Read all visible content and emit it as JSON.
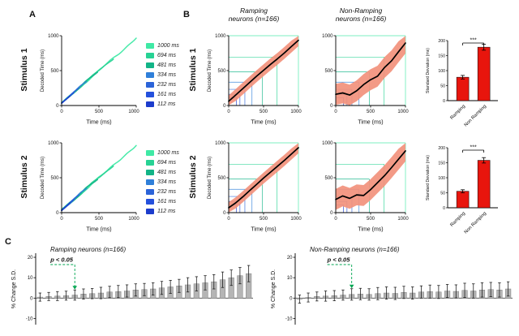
{
  "figure": {
    "panel_labels": {
      "a": "A",
      "b": "B",
      "c": "C"
    },
    "row_labels": {
      "stim1": "Stimulus 1",
      "stim2": "Stimulus 2"
    },
    "b_col_titles": {
      "ramping_line1": "Ramping",
      "ramping_line2": "neurons (n=166)",
      "nonramping_line1": "Non-Ramping",
      "nonramping_line2": "neurons (n=166)"
    }
  },
  "legend": {
    "items": [
      {
        "label": "1000 ms",
        "color": "#3fe9a5"
      },
      {
        "label": "694 ms",
        "color": "#27d294"
      },
      {
        "label": "481 ms",
        "color": "#12b487"
      },
      {
        "label": "334 ms",
        "color": "#2f7fd9"
      },
      {
        "label": "232 ms",
        "color": "#2b63d8"
      },
      {
        "label": "161 ms",
        "color": "#2450dc"
      },
      {
        "label": "112 ms",
        "color": "#1c3ccc"
      }
    ]
  },
  "chart_data": [
    {
      "id": "a1",
      "type": "lines",
      "title": "",
      "xlabel": "Time (ms)",
      "ylabel": "Decoded Time (ms)",
      "xlim": [
        0,
        1000
      ],
      "ylim": [
        0,
        1000
      ],
      "xticks": [
        0,
        500,
        1000
      ],
      "yticks": [
        0,
        500,
        1000
      ],
      "seed": 1,
      "series": [
        {
          "name": "1000 ms",
          "color": "#3fe9a5",
          "duration": 1000
        },
        {
          "name": "694 ms",
          "color": "#27d294",
          "duration": 694
        },
        {
          "name": "481 ms",
          "color": "#12b487",
          "duration": 481
        },
        {
          "name": "334 ms",
          "color": "#2f7fd9",
          "duration": 334
        },
        {
          "name": "232 ms",
          "color": "#2b63d8",
          "duration": 232
        },
        {
          "name": "161 ms",
          "color": "#2450dc",
          "duration": 161
        },
        {
          "name": "112 ms",
          "color": "#1c3ccc",
          "duration": 112
        }
      ]
    },
    {
      "id": "a2",
      "type": "lines",
      "title": "",
      "xlabel": "Time (ms)",
      "ylabel": "Decoded Time (ms)",
      "xlim": [
        0,
        1000
      ],
      "ylim": [
        0,
        1000
      ],
      "xticks": [
        0,
        500,
        1000
      ],
      "yticks": [
        0,
        500,
        1000
      ],
      "seed": 2,
      "series": [
        {
          "name": "1000 ms",
          "color": "#3fe9a5",
          "duration": 1000
        },
        {
          "name": "694 ms",
          "color": "#27d294",
          "duration": 694
        },
        {
          "name": "481 ms",
          "color": "#12b487",
          "duration": 481
        },
        {
          "name": "334 ms",
          "color": "#2f7fd9",
          "duration": 334
        },
        {
          "name": "232 ms",
          "color": "#2b63d8",
          "duration": 232
        },
        {
          "name": "161 ms",
          "color": "#2450dc",
          "duration": 161
        },
        {
          "name": "112 ms",
          "color": "#1c3ccc",
          "duration": 112
        }
      ]
    },
    {
      "id": "b1",
      "type": "ramp",
      "title": "Ramping neurons (n=166) - Stimulus 1",
      "xlabel": "Time (ms)",
      "ylabel": "Decoded Time (ms)",
      "xlim": [
        0,
        1000
      ],
      "ylim": [
        0,
        1000
      ],
      "xticks": [
        0,
        500,
        1000
      ],
      "yticks": [
        0,
        500,
        1000
      ],
      "grid_durations": [
        112,
        161,
        232,
        334,
        481,
        694,
        1000
      ],
      "mean": [
        60,
        150,
        240,
        330,
        420,
        505,
        590,
        670,
        755,
        845,
        935
      ],
      "band": 85,
      "band_color": "#f2917c",
      "line_color": "#000000"
    },
    {
      "id": "b2",
      "type": "ramp",
      "title": "Non-Ramping neurons (n=166) - Stimulus 1",
      "xlabel": "Time (ms)",
      "ylabel": "",
      "xlim": [
        0,
        1000
      ],
      "ylim": [
        0,
        1000
      ],
      "xticks": [
        0,
        500,
        1000
      ],
      "yticks": [
        0,
        500,
        1000
      ],
      "grid_durations": [
        112,
        161,
        232,
        334,
        481,
        694,
        1000
      ],
      "mean": [
        160,
        180,
        150,
        210,
        300,
        370,
        420,
        545,
        640,
        770,
        895
      ],
      "band": 150,
      "band_color": "#f2917c",
      "line_color": "#000000"
    },
    {
      "id": "b3",
      "type": "ramp",
      "title": "Ramping neurons (n=166) - Stimulus 2",
      "xlabel": "Time (ms)",
      "ylabel": "Decoded Time (ms)",
      "xlim": [
        0,
        1000
      ],
      "ylim": [
        0,
        1000
      ],
      "xticks": [
        0,
        500,
        1000
      ],
      "yticks": [
        0,
        500,
        1000
      ],
      "grid_durations": [
        112,
        161,
        232,
        334,
        481,
        694,
        1000
      ],
      "mean": [
        70,
        140,
        225,
        315,
        405,
        495,
        580,
        665,
        750,
        840,
        930
      ],
      "band": 80,
      "band_color": "#f2917c",
      "line_color": "#000000"
    },
    {
      "id": "b4",
      "type": "ramp",
      "title": "Non-Ramping neurons (n=166) - Stimulus 2",
      "xlabel": "Time (ms)",
      "ylabel": "",
      "xlim": [
        0,
        1000
      ],
      "ylim": [
        0,
        1000
      ],
      "xticks": [
        0,
        500,
        1000
      ],
      "yticks": [
        0,
        500,
        1000
      ],
      "grid_durations": [
        112,
        161,
        232,
        334,
        481,
        694,
        1000
      ],
      "mean": [
        190,
        240,
        205,
        255,
        245,
        330,
        430,
        530,
        645,
        765,
        885
      ],
      "band": 150,
      "band_color": "#f2917c",
      "line_color": "#000000"
    },
    {
      "id": "sd1",
      "type": "bar",
      "title": "Standard Deviation - Stimulus 1",
      "ylabel": "Standard Deviation (ms)",
      "categories": [
        "Ramping",
        "Non Ramping"
      ],
      "values": [
        78,
        178
      ],
      "errors": [
        6,
        10
      ],
      "ylim": [
        0,
        200
      ],
      "yticks": [
        0,
        50,
        100,
        150,
        200
      ],
      "bar_color": "#e8150d",
      "sig": "***"
    },
    {
      "id": "sd2",
      "type": "bar",
      "title": "Standard Deviation - Stimulus 2",
      "ylabel": "Standard Deviation (ms)",
      "categories": [
        "Ramping",
        "Non Ramping"
      ],
      "values": [
        55,
        158
      ],
      "errors": [
        5,
        9
      ],
      "ylim": [
        0,
        200
      ],
      "yticks": [
        0,
        50,
        100,
        150,
        200
      ],
      "bar_color": "#e8150d",
      "sig": "***"
    },
    {
      "id": "c1",
      "type": "barseries",
      "title": "Ramping neurons (n=166)",
      "ylabel": "% Change S.D.",
      "ylim": [
        -13,
        22
      ],
      "yticks": [
        -10,
        0,
        10,
        20
      ],
      "bar_color": "#b5b5b5",
      "values": [
        0.5,
        0.8,
        1.0,
        1.2,
        1.5,
        2.0,
        2.2,
        2.5,
        3.0,
        3.2,
        3.5,
        4.0,
        4.2,
        4.5,
        5.0,
        5.5,
        6.0,
        6.5,
        7.0,
        7.5,
        8.0,
        9.0,
        10.0,
        11.0,
        12.0
      ],
      "errors": [
        2.0,
        2.0,
        2.2,
        2.2,
        2.5,
        2.5,
        2.5,
        2.8,
        2.8,
        3.0,
        3.0,
        3.0,
        3.0,
        3.0,
        3.2,
        3.2,
        3.2,
        3.5,
        3.5,
        3.5,
        3.5,
        3.8,
        3.8,
        4.0,
        4.0
      ],
      "annotation": {
        "text": "p < 0.05",
        "color": "#00a651",
        "index": 4
      }
    },
    {
      "id": "c2",
      "type": "barseries",
      "title": "Non-Ramping neurons (n=166)",
      "ylabel": "% Change S.D.",
      "ylim": [
        -13,
        22
      ],
      "yticks": [
        -10,
        0,
        10,
        20
      ],
      "bar_color": "#b5b5b5",
      "values": [
        -0.5,
        0.3,
        0.8,
        1.0,
        1.2,
        1.5,
        1.8,
        2.0,
        1.8,
        2.2,
        2.5,
        2.3,
        2.8,
        2.5,
        3.0,
        3.2,
        3.0,
        3.5,
        3.3,
        3.8,
        3.5,
        4.0,
        4.2,
        4.0,
        4.5
      ],
      "errors": [
        2.0,
        2.2,
        2.2,
        2.5,
        2.5,
        2.5,
        2.8,
        2.8,
        2.8,
        3.0,
        3.0,
        3.0,
        3.0,
        3.0,
        3.0,
        3.2,
        3.2,
        3.2,
        3.2,
        3.5,
        3.5,
        3.5,
        3.5,
        3.5,
        3.5
      ],
      "annotation": {
        "text": "p < 0.05",
        "color": "#00a651",
        "index": 6
      }
    }
  ]
}
